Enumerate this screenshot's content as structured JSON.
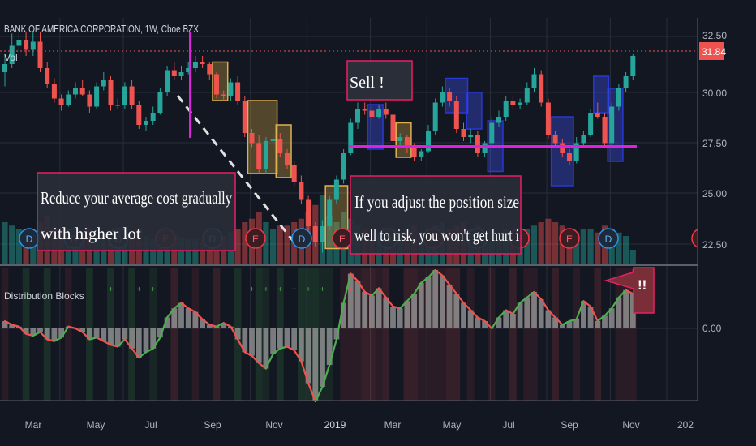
{
  "header": {
    "symbol_line": "BANK OF AMERICA CORPORATION, 1W, Cboe BZX",
    "vol_label": "Vol"
  },
  "price_axis": {
    "ticks": [
      "32.50",
      "30.00",
      "27.50",
      "25.00",
      "22.50"
    ],
    "current_price": "31.84"
  },
  "indicator": {
    "name": "Distribution Blocks",
    "zero_label": "0.00"
  },
  "time_axis": {
    "labels": [
      "Mar",
      "May",
      "Jul",
      "Sep",
      "Nov",
      "2019",
      "Mar",
      "May",
      "Jul",
      "Sep",
      "Nov",
      "202"
    ]
  },
  "annotations": {
    "sell": "Sell !",
    "reduce_line1": "Reduce your average cost gradually",
    "reduce_line2": "with higher lot",
    "adjust_line1": "If you adjust the position size",
    "adjust_line2": "well to risk, you won't get hurt i",
    "alert": "!!"
  },
  "colors": {
    "background": "#131722",
    "grid": "#2a2e39",
    "up": "#26a69a",
    "down": "#ef5350",
    "osc_up": "#4caf50",
    "osc_down": "#ef5350",
    "magenta": "#e020e0",
    "label_box": "#2a2e39",
    "label_border": "#e91e63"
  },
  "chart_data": {
    "type": "candlestick",
    "interval": "1W",
    "ylim": [
      21,
      34
    ],
    "x": [
      "2018-02-05",
      "2018-02-12",
      "2018-02-19",
      "2018-02-26",
      "2018-03-05",
      "2018-03-12",
      "2018-03-19",
      "2018-03-26",
      "2018-04-02",
      "2018-04-09",
      "2018-04-16",
      "2018-04-23",
      "2018-04-30",
      "2018-05-07",
      "2018-05-14",
      "2018-05-21",
      "2018-05-28",
      "2018-06-04",
      "2018-06-11",
      "2018-06-18",
      "2018-06-25",
      "2018-07-02",
      "2018-07-09",
      "2018-07-16",
      "2018-07-23",
      "2018-07-30",
      "2018-08-06",
      "2018-08-13",
      "2018-08-20",
      "2018-08-27",
      "2018-09-03",
      "2018-09-10",
      "2018-09-17",
      "2018-09-24",
      "2018-10-01",
      "2018-10-08",
      "2018-10-15",
      "2018-10-22",
      "2018-10-29",
      "2018-11-05",
      "2018-11-12",
      "2018-11-19",
      "2018-11-26",
      "2018-12-03",
      "2018-12-10",
      "2018-12-17",
      "2018-12-24",
      "2018-12-31",
      "2019-01-07",
      "2019-01-14",
      "2019-01-21",
      "2019-01-28",
      "2019-02-04",
      "2019-02-11",
      "2019-02-18",
      "2019-02-25",
      "2019-03-04",
      "2019-03-11",
      "2019-03-18",
      "2019-03-25",
      "2019-04-01",
      "2019-04-08",
      "2019-04-15",
      "2019-04-22",
      "2019-04-29",
      "2019-05-06",
      "2019-05-13",
      "2019-05-20",
      "2019-05-27",
      "2019-06-03",
      "2019-06-10",
      "2019-06-17",
      "2019-06-24",
      "2019-07-01",
      "2019-07-08",
      "2019-07-15",
      "2019-07-22",
      "2019-07-29",
      "2019-08-05",
      "2019-08-12",
      "2019-08-19",
      "2019-08-26",
      "2019-09-02",
      "2019-09-09",
      "2019-09-16",
      "2019-09-23",
      "2019-09-30",
      "2019-10-07",
      "2019-10-14",
      "2019-10-21"
    ],
    "open": [
      31.0,
      31.4,
      32.3,
      32.6,
      32.1,
      32.5,
      31.2,
      30.4,
      29.7,
      29.4,
      29.9,
      30.2,
      29.9,
      29.3,
      30.3,
      30.6,
      29.4,
      29.4,
      30.3,
      29.4,
      28.4,
      28.6,
      29.0,
      30.0,
      31.1,
      30.8,
      31.0,
      31.2,
      31.5,
      31.4,
      30.9,
      29.9,
      29.8,
      30.5,
      29.6,
      28.0,
      27.5,
      26.2,
      27.6,
      27.7,
      27.0,
      26.4,
      25.6,
      24.7,
      23.4,
      22.6,
      23.4,
      24.7,
      25.7,
      27.0,
      28.5,
      29.2,
      29.1,
      28.8,
      29.2,
      28.9,
      27.6,
      27.8,
      27.3,
      26.8,
      27.1,
      28.1,
      29.5,
      30.0,
      29.6,
      28.2,
      27.8,
      27.9,
      27.0,
      27.5,
      28.5,
      28.8,
      29.6,
      29.4,
      29.5,
      30.2,
      30.9,
      29.5,
      27.9,
      27.5,
      27.0,
      26.6,
      27.5,
      27.9,
      29.0,
      28.8,
      27.5,
      29.3,
      30.2,
      30.8
    ],
    "high": [
      31.9,
      32.9,
      33.0,
      33.0,
      33.0,
      33.0,
      31.5,
      30.7,
      29.9,
      30.1,
      30.5,
      30.6,
      30.1,
      30.5,
      31.0,
      30.8,
      29.7,
      30.5,
      30.6,
      29.6,
      28.8,
      29.3,
      30.2,
      31.3,
      31.5,
      31.3,
      31.5,
      31.8,
      31.8,
      31.5,
      31.0,
      30.1,
      30.7,
      30.8,
      29.8,
      28.2,
      27.9,
      27.8,
      28.0,
      28.0,
      27.2,
      26.6,
      25.9,
      24.9,
      23.6,
      23.7,
      24.9,
      25.9,
      27.2,
      28.7,
      29.5,
      29.5,
      29.4,
      29.4,
      29.5,
      29.0,
      28.0,
      27.9,
      27.5,
      27.2,
      28.4,
      29.7,
      30.3,
      30.2,
      29.8,
      28.5,
      28.2,
      28.1,
      27.6,
      28.8,
      29.1,
      29.8,
      29.8,
      29.7,
      30.5,
      31.2,
      31.1,
      29.7,
      28.1,
      27.7,
      27.2,
      27.8,
      28.1,
      29.2,
      29.5,
      29.0,
      29.5,
      30.4,
      31.0,
      31.9
    ],
    "low": [
      30.3,
      31.2,
      32.0,
      31.8,
      31.8,
      31.0,
      30.2,
      29.5,
      29.1,
      29.3,
      29.7,
      29.8,
      29.0,
      29.2,
      30.1,
      29.1,
      29.2,
      29.2,
      29.2,
      28.2,
      28.1,
      28.4,
      28.9,
      29.8,
      30.6,
      30.6,
      30.9,
      31.0,
      31.2,
      30.6,
      29.7,
      29.6,
      29.6,
      29.4,
      27.8,
      27.3,
      26.0,
      26.0,
      27.3,
      26.8,
      26.2,
      25.4,
      24.5,
      23.2,
      22.4,
      22.1,
      23.2,
      24.5,
      25.5,
      26.9,
      28.2,
      28.9,
      28.6,
      28.7,
      28.7,
      27.4,
      27.4,
      27.0,
      26.6,
      26.6,
      27.0,
      27.9,
      29.3,
      29.3,
      28.0,
      27.6,
      27.5,
      26.8,
      26.8,
      27.3,
      28.3,
      28.6,
      29.2,
      29.2,
      29.4,
      30.0,
      29.3,
      27.7,
      27.3,
      26.8,
      26.4,
      26.5,
      27.3,
      27.8,
      28.7,
      27.3,
      27.4,
      29.1,
      30.0,
      30.6
    ],
    "close": [
      31.4,
      32.3,
      32.6,
      32.1,
      32.5,
      31.2,
      30.4,
      29.7,
      29.4,
      29.9,
      30.2,
      29.9,
      29.3,
      30.3,
      30.6,
      29.4,
      29.4,
      30.3,
      29.4,
      28.4,
      28.6,
      29.0,
      30.0,
      31.1,
      30.8,
      31.0,
      31.2,
      31.5,
      31.4,
      30.9,
      29.9,
      29.8,
      30.5,
      29.6,
      28.0,
      27.5,
      26.2,
      27.6,
      27.7,
      27.0,
      26.4,
      25.6,
      24.7,
      23.4,
      22.6,
      23.4,
      24.7,
      25.7,
      27.0,
      28.5,
      29.2,
      29.1,
      28.8,
      29.2,
      28.9,
      27.6,
      27.8,
      27.3,
      26.8,
      27.1,
      28.1,
      29.5,
      30.0,
      29.6,
      28.2,
      27.8,
      27.9,
      27.0,
      27.5,
      28.5,
      28.8,
      29.6,
      29.4,
      29.5,
      30.2,
      30.9,
      29.5,
      27.9,
      27.5,
      27.0,
      26.6,
      27.5,
      27.9,
      29.0,
      28.8,
      27.5,
      29.3,
      30.2,
      30.8,
      31.8
    ],
    "volume": [
      0.6,
      0.55,
      0.5,
      0.48,
      0.45,
      0.6,
      0.7,
      0.5,
      0.52,
      0.48,
      0.5,
      0.45,
      0.5,
      0.42,
      0.4,
      0.45,
      0.4,
      0.38,
      0.45,
      0.5,
      0.4,
      0.35,
      0.45,
      0.5,
      0.42,
      0.38,
      0.35,
      0.36,
      0.3,
      0.35,
      0.45,
      0.4,
      0.45,
      0.5,
      0.6,
      0.65,
      0.75,
      0.6,
      0.5,
      0.55,
      0.55,
      0.6,
      0.65,
      0.75,
      0.85,
      1.0,
      0.7,
      0.6,
      0.75,
      0.65,
      0.55,
      0.5,
      0.45,
      0.45,
      0.4,
      0.5,
      0.45,
      0.5,
      0.55,
      0.45,
      0.5,
      0.55,
      0.6,
      0.5,
      0.55,
      0.6,
      0.5,
      0.55,
      0.45,
      0.5,
      0.45,
      0.5,
      0.45,
      0.4,
      0.5,
      0.55,
      0.6,
      0.65,
      0.6,
      0.55,
      0.5,
      0.45,
      0.5,
      0.5,
      0.45,
      0.55,
      0.5,
      0.45,
      0.4,
      0.2
    ],
    "oscillator": [
      0.2,
      0.1,
      0.05,
      -0.15,
      -0.2,
      -0.1,
      -0.3,
      -0.35,
      -0.25,
      0.05,
      0.0,
      -0.1,
      -0.3,
      -0.25,
      -0.35,
      -0.45,
      -0.5,
      -0.3,
      -0.55,
      -0.8,
      -0.65,
      -0.55,
      -0.25,
      0.3,
      0.55,
      0.7,
      0.55,
      0.45,
      0.25,
      0.1,
      0.05,
      0.15,
      0.05,
      -0.3,
      -0.65,
      -0.75,
      -0.95,
      -1.1,
      -0.7,
      -0.55,
      -0.5,
      -0.6,
      -0.9,
      -1.5,
      -2.0,
      -1.6,
      -1.0,
      -0.3,
      0.7,
      1.5,
      1.3,
      1.0,
      0.9,
      1.1,
      0.85,
      0.6,
      0.55,
      0.75,
      0.95,
      1.25,
      1.4,
      1.6,
      1.45,
      1.2,
      0.95,
      0.7,
      0.5,
      0.3,
      0.2,
      0.0,
      0.3,
      0.5,
      0.4,
      0.7,
      0.85,
      1.0,
      0.8,
      0.5,
      0.3,
      0.1,
      0.2,
      0.25,
      0.75,
      0.6,
      0.2,
      0.35,
      0.55,
      0.85,
      1.05,
      0.95
    ],
    "zones": [
      {
        "start": "2018-09-03",
        "end": "2018-09-10",
        "top": 31.5,
        "bottom": 29.6,
        "color": "#c8a040"
      },
      {
        "start": "2018-10-08",
        "end": "2018-10-29",
        "top": 29.6,
        "bottom": 26.0,
        "color": "#c8a040"
      },
      {
        "start": "2018-11-05",
        "end": "2018-11-12",
        "top": 28.4,
        "bottom": 25.8,
        "color": "#c8a040"
      },
      {
        "start": "2018-12-24",
        "end": "2019-01-07",
        "top": 25.4,
        "bottom": 22.3,
        "color": "#c8a040"
      },
      {
        "start": "2019-02-04",
        "end": "2019-02-11",
        "top": 29.4,
        "bottom": 27.2,
        "color": "#3f51f5"
      },
      {
        "start": "2019-03-04",
        "end": "2019-03-11",
        "top": 28.5,
        "bottom": 26.8,
        "color": "#c8a040"
      },
      {
        "start": "2019-04-22",
        "end": "2019-05-06",
        "top": 30.7,
        "bottom": 29.0,
        "color": "#3f51f5"
      },
      {
        "start": "2019-05-13",
        "end": "2019-05-20",
        "top": 30.0,
        "bottom": 28.2,
        "color": "#3f51f5"
      },
      {
        "start": "2019-06-03",
        "end": "2019-06-10",
        "top": 28.6,
        "bottom": 26.1,
        "color": "#3f51f5"
      },
      {
        "start": "2019-08-05",
        "end": "2019-08-19",
        "top": 28.8,
        "bottom": 25.4,
        "color": "#3f51f5"
      },
      {
        "start": "2019-09-16",
        "end": "2019-09-23",
        "top": 30.8,
        "bottom": 29.0,
        "color": "#3f51f5"
      },
      {
        "start": "2019-09-30",
        "end": "2019-10-07",
        "top": 30.2,
        "bottom": 26.6,
        "color": "#3f51f5"
      }
    ],
    "support_level": 27.2,
    "current_price": 31.84,
    "event_markers": [
      "D",
      "D",
      "D",
      "E",
      "D",
      "E",
      "D",
      "E",
      "D",
      "E",
      "D",
      "E",
      "E",
      "D",
      "E"
    ]
  }
}
